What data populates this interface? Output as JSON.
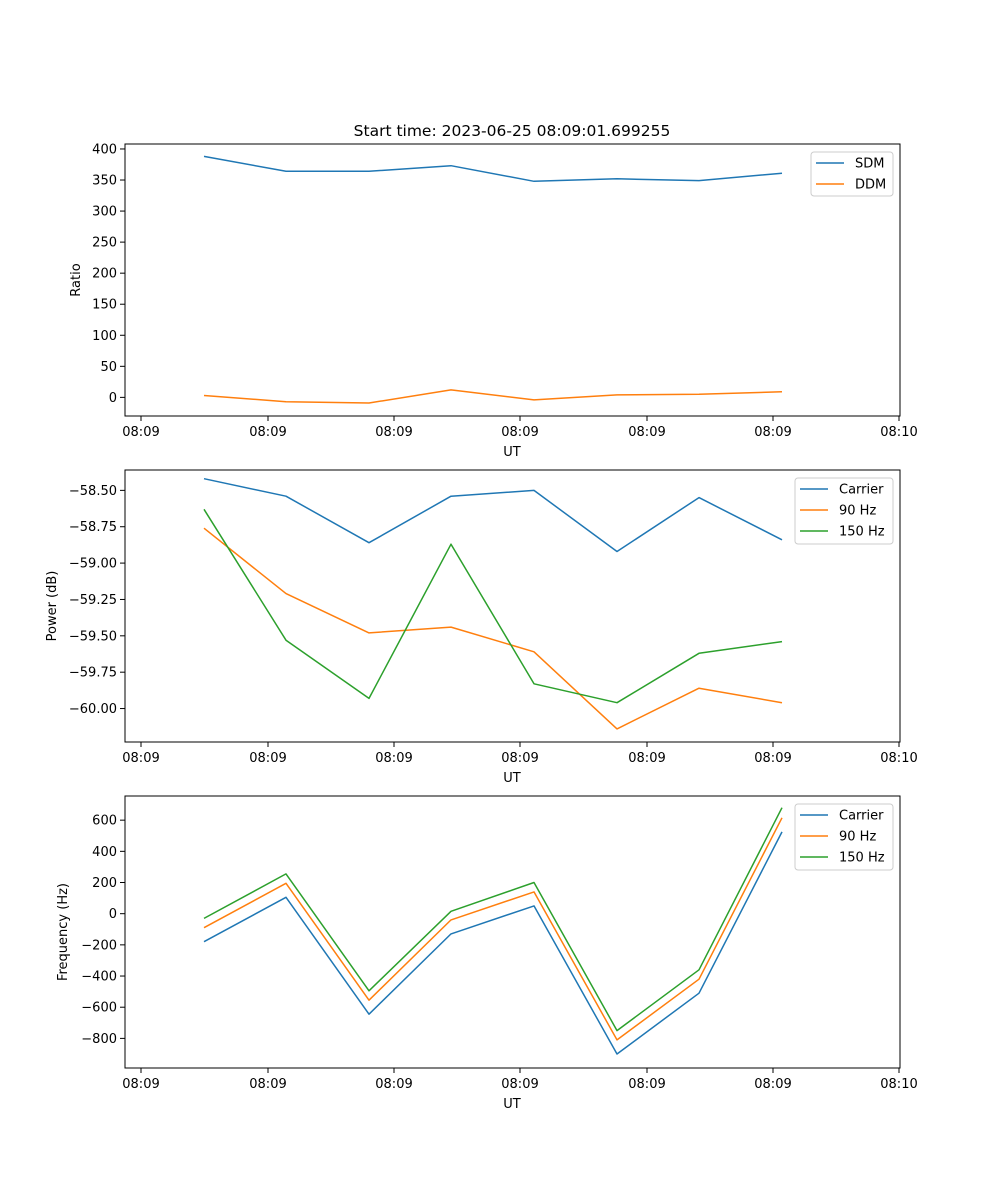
{
  "chart_data": [
    {
      "type": "line",
      "title": "Start time: 2023-06-25 08:09:01.699255",
      "xlabel": "UT",
      "ylabel": "Ratio",
      "x_tick_labels": [
        "08:09",
        "08:09",
        "08:09",
        "08:09",
        "08:09",
        "08:09",
        "08:09",
        "08:10"
      ],
      "y_ticks": [
        0,
        50,
        100,
        150,
        200,
        250,
        300,
        350,
        400
      ],
      "y_tick_labels": [
        "0",
        "50",
        "100",
        "150",
        "200",
        "250",
        "300",
        "350",
        "400"
      ],
      "ylim": [
        -30,
        408
      ],
      "legend_position": "top-right",
      "series": [
        {
          "name": "SDM",
          "color": "#1f77b4",
          "values": [
            388,
            364,
            364,
            373,
            348,
            352,
            349,
            361
          ]
        },
        {
          "name": "DDM",
          "color": "#ff7f0e",
          "values": [
            3,
            -7,
            -9,
            12,
            -4,
            4,
            5,
            9
          ]
        }
      ]
    },
    {
      "type": "line",
      "xlabel": "UT",
      "ylabel": "Power (dB)",
      "x_tick_labels": [
        "08:09",
        "08:09",
        "08:09",
        "08:09",
        "08:09",
        "08:09",
        "08:09",
        "08:10"
      ],
      "y_ticks": [
        -60.0,
        -59.75,
        -59.5,
        -59.25,
        -59.0,
        -58.75,
        -58.5
      ],
      "y_tick_labels": [
        "−60.00",
        "−59.75",
        "−59.50",
        "−59.25",
        "−59.00",
        "−58.75",
        "−58.50"
      ],
      "ylim": [
        -60.23,
        -58.36
      ],
      "legend_position": "top-right",
      "series": [
        {
          "name": "Carrier",
          "color": "#1f77b4",
          "values": [
            -58.42,
            -58.54,
            -58.86,
            -58.54,
            -58.5,
            -58.92,
            -58.55,
            -58.84
          ]
        },
        {
          "name": "90 Hz",
          "color": "#ff7f0e",
          "values": [
            -58.76,
            -59.21,
            -59.48,
            -59.44,
            -59.61,
            -60.14,
            -59.86,
            -59.96
          ]
        },
        {
          "name": "150 Hz",
          "color": "#2ca02c",
          "values": [
            -58.63,
            -59.53,
            -59.93,
            -58.87,
            -59.83,
            -59.96,
            -59.62,
            -59.54
          ]
        }
      ]
    },
    {
      "type": "line",
      "xlabel": "UT",
      "ylabel": "Frequency (Hz)",
      "x_tick_labels": [
        "08:09",
        "08:09",
        "08:09",
        "08:09",
        "08:09",
        "08:09",
        "08:09",
        "08:10"
      ],
      "y_ticks": [
        -800,
        -600,
        -400,
        -200,
        0,
        200,
        400,
        600
      ],
      "y_tick_labels": [
        "−800",
        "−600",
        "−400",
        "−200",
        "0",
        "200",
        "400",
        "600"
      ],
      "ylim": [
        -990,
        755
      ],
      "legend_position": "top-right",
      "series": [
        {
          "name": "Carrier",
          "color": "#1f77b4",
          "values": [
            -180,
            105,
            -645,
            -130,
            50,
            -900,
            -510,
            525
          ]
        },
        {
          "name": "90 Hz",
          "color": "#ff7f0e",
          "values": [
            -90,
            195,
            -555,
            -40,
            140,
            -810,
            -420,
            615
          ]
        },
        {
          "name": "150 Hz",
          "color": "#2ca02c",
          "values": [
            -30,
            255,
            -495,
            15,
            200,
            -750,
            -360,
            680
          ]
        }
      ]
    }
  ]
}
